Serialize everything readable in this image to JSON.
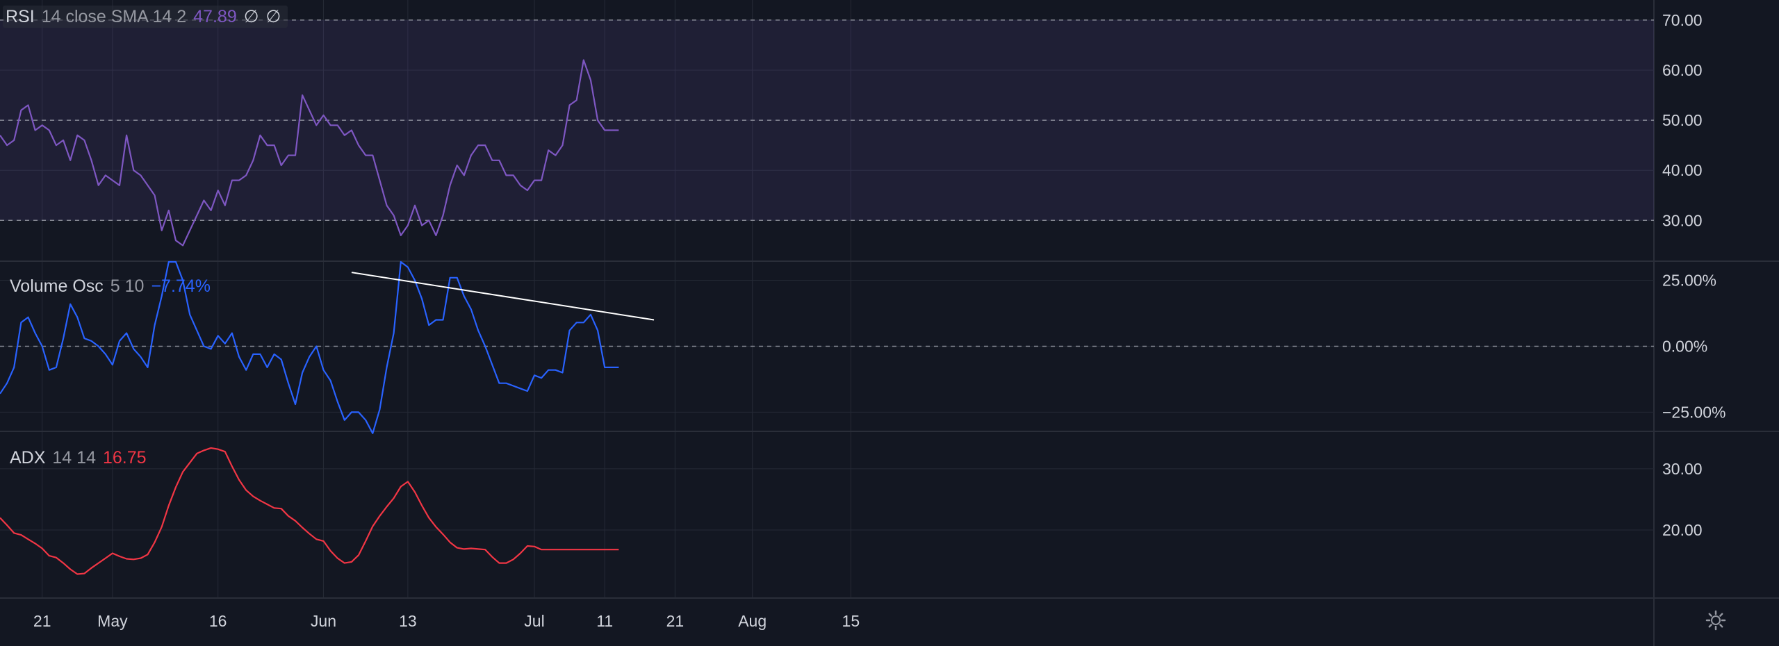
{
  "legends": {
    "rsi": {
      "name": "RSI",
      "params": "14 close SMA 14 2",
      "value": "47.89",
      "extra1": "∅",
      "extra2": "∅"
    },
    "vol": {
      "name": "Volume Osc",
      "params": "5 10",
      "value": "−7.74%"
    },
    "adx": {
      "name": "ADX",
      "params": "14 14",
      "value": "16.75"
    }
  },
  "colors": {
    "background": "#131722",
    "rsi_line": "#7e57c2",
    "rsi_band": "#7e57c2",
    "vol_line": "#2962ff",
    "adx_line": "#f23645",
    "trendline": "#ffffff",
    "grid": "#252a36",
    "text": "#d1d4dc"
  },
  "icons": {
    "settings": "gear-icon"
  },
  "chart_data": [
    {
      "type": "line",
      "name": "RSI",
      "ylim": [
        22,
        74
      ],
      "band": [
        30,
        70
      ],
      "reference_lines": [
        70,
        50,
        30
      ],
      "yticks": [
        {
          "v": 70,
          "label": "70.00"
        },
        {
          "v": 60,
          "label": "60.00"
        },
        {
          "v": 50,
          "label": "50.00"
        },
        {
          "v": 40,
          "label": "40.00"
        },
        {
          "v": 30,
          "label": "30.00"
        }
      ],
      "x": [
        15,
        16,
        17,
        18,
        19,
        20,
        21,
        22,
        23,
        24,
        25,
        26,
        27,
        28,
        29,
        30,
        31,
        32,
        33,
        34,
        35,
        36,
        37,
        38,
        39,
        40,
        41,
        42,
        43,
        44,
        45,
        46,
        47,
        48,
        49,
        50,
        51,
        52,
        53,
        54,
        55,
        56,
        57,
        58,
        59,
        60,
        61,
        62,
        63,
        64,
        65,
        66,
        67,
        68,
        69,
        70,
        71,
        72,
        73,
        74,
        75,
        76,
        77,
        78,
        79,
        80,
        81,
        82,
        83,
        84,
        85,
        86,
        87,
        88,
        89,
        90,
        91,
        92,
        93,
        94,
        95,
        96,
        97,
        98,
        99,
        100,
        101,
        102,
        103
      ],
      "values": [
        47,
        45,
        46,
        52,
        53,
        48,
        49,
        48,
        45,
        46,
        42,
        47,
        46,
        42,
        37,
        39,
        38,
        37,
        47,
        40,
        39,
        37,
        35,
        28,
        32,
        26,
        25,
        28,
        31,
        34,
        32,
        36,
        33,
        38,
        38,
        39,
        42,
        47,
        45,
        45,
        41,
        43,
        43,
        55,
        52,
        49,
        51,
        49,
        49,
        47,
        48,
        45,
        43,
        43,
        38,
        33,
        31,
        27,
        29,
        33,
        29,
        30,
        27,
        31,
        37,
        41,
        39,
        43,
        45,
        45,
        42,
        42,
        39,
        39,
        37,
        36,
        38,
        38,
        44,
        43,
        45,
        53,
        54,
        62,
        58,
        50,
        48,
        48,
        48
      ]
    },
    {
      "type": "line",
      "name": "Volume Osc",
      "ylim": [
        -32,
        32
      ],
      "reference_lines": [
        0
      ],
      "yticks": [
        {
          "v": 25,
          "label": "25.00%"
        },
        {
          "v": 0,
          "label": "0.00%"
        },
        {
          "v": -25,
          "label": "−25.00%"
        }
      ],
      "x": [
        15,
        16,
        17,
        18,
        19,
        20,
        21,
        22,
        23,
        24,
        25,
        26,
        27,
        28,
        29,
        30,
        31,
        32,
        33,
        34,
        35,
        36,
        37,
        38,
        39,
        40,
        41,
        42,
        43,
        44,
        45,
        46,
        47,
        48,
        49,
        50,
        51,
        52,
        53,
        54,
        55,
        56,
        57,
        58,
        59,
        60,
        61,
        62,
        63,
        64,
        65,
        66,
        67,
        68,
        69,
        70,
        71,
        72,
        73,
        74,
        75,
        76,
        77,
        78,
        79,
        80,
        81,
        82,
        83,
        84,
        85,
        86,
        87,
        88,
        89,
        90,
        91,
        92,
        93,
        94,
        95,
        96,
        97,
        98,
        99,
        100,
        101,
        102,
        103
      ],
      "values": [
        -18,
        -14,
        -8,
        9,
        11,
        5,
        0,
        -9,
        -8,
        3,
        16,
        11,
        3,
        2,
        0,
        -3,
        -7,
        2,
        5,
        -1,
        -4,
        -8,
        8,
        19,
        32,
        32,
        25,
        12,
        6,
        0,
        -1,
        4,
        1,
        5,
        -4,
        -9,
        -3,
        -3,
        -8,
        -3,
        -5,
        -14,
        -22,
        -10,
        -4,
        0,
        -9,
        -13,
        -21,
        -28,
        -25,
        -25,
        -28,
        -33,
        -24,
        -8,
        5,
        32,
        30,
        25,
        18,
        8,
        10,
        10,
        26,
        26,
        19,
        14,
        6,
        0,
        -7,
        -14,
        -14,
        -15,
        -16,
        -17,
        -11,
        -12,
        -9,
        -9,
        -10,
        6,
        9,
        9,
        12,
        6,
        -8,
        -8,
        -8
      ]
    },
    {
      "type": "line",
      "name": "ADX",
      "ylim": [
        9,
        36
      ],
      "yticks": [
        {
          "v": 30,
          "label": "30.00"
        },
        {
          "v": 20,
          "label": "20.00"
        }
      ],
      "x": [
        15,
        16,
        17,
        18,
        19,
        20,
        21,
        22,
        23,
        24,
        25,
        26,
        27,
        28,
        29,
        30,
        31,
        32,
        33,
        34,
        35,
        36,
        37,
        38,
        39,
        40,
        41,
        42,
        43,
        44,
        45,
        46,
        47,
        48,
        49,
        50,
        51,
        52,
        53,
        54,
        55,
        56,
        57,
        58,
        59,
        60,
        61,
        62,
        63,
        64,
        65,
        66,
        67,
        68,
        69,
        70,
        71,
        72,
        73,
        74,
        75,
        76,
        77,
        78,
        79,
        80,
        81,
        82,
        83,
        84,
        85,
        86,
        87,
        88,
        89,
        90,
        91,
        92,
        93,
        94,
        95,
        96,
        97,
        98,
        99,
        100,
        101,
        102,
        103
      ],
      "values": [
        22,
        20.8,
        19.5,
        19.2,
        18.5,
        17.8,
        17,
        15.8,
        15.5,
        14.6,
        13.6,
        12.8,
        12.9,
        13.8,
        14.6,
        15.4,
        16.2,
        15.7,
        15.3,
        15.2,
        15.4,
        16,
        18,
        20.5,
        24,
        27,
        29.5,
        31,
        32.5,
        33,
        33.4,
        33.2,
        32.8,
        30.4,
        28.2,
        26.5,
        25.5,
        24.8,
        24.2,
        23.6,
        23.5,
        22.3,
        21.5,
        20.4,
        19.4,
        18.5,
        18.2,
        16.6,
        15.4,
        14.6,
        14.8,
        15.9,
        18.2,
        20.6,
        22.3,
        23.8,
        25.2,
        27.1,
        27.9,
        26.2,
        24,
        22,
        20.5,
        19.3,
        18,
        17.1,
        16.9,
        17,
        16.9,
        16.8,
        15.6,
        14.6,
        14.6,
        15.2,
        16.2,
        17.4,
        17.3,
        16.8,
        16.8,
        16.8,
        16.8,
        16.8,
        16.8,
        16.8,
        16.8,
        16.8,
        16.8,
        16.8,
        16.8
      ]
    }
  ],
  "trendline": {
    "from": {
      "x": 65,
      "y": 28
    },
    "to": {
      "x": 108,
      "y": 10
    }
  },
  "x_axis": {
    "xlim": [
      15,
      268
    ],
    "ticks": [
      {
        "x": 21,
        "label": "21"
      },
      {
        "x": 31,
        "label": "May"
      },
      {
        "x": 46,
        "label": "16"
      },
      {
        "x": 61,
        "label": "Jun"
      },
      {
        "x": 73,
        "label": "13"
      },
      {
        "x": 91,
        "label": "Jul"
      },
      {
        "x": 101,
        "label": "11"
      },
      {
        "x": 111,
        "label": "21"
      },
      {
        "x": 122,
        "label": "Aug"
      },
      {
        "x": 136,
        "label": "15"
      }
    ]
  }
}
